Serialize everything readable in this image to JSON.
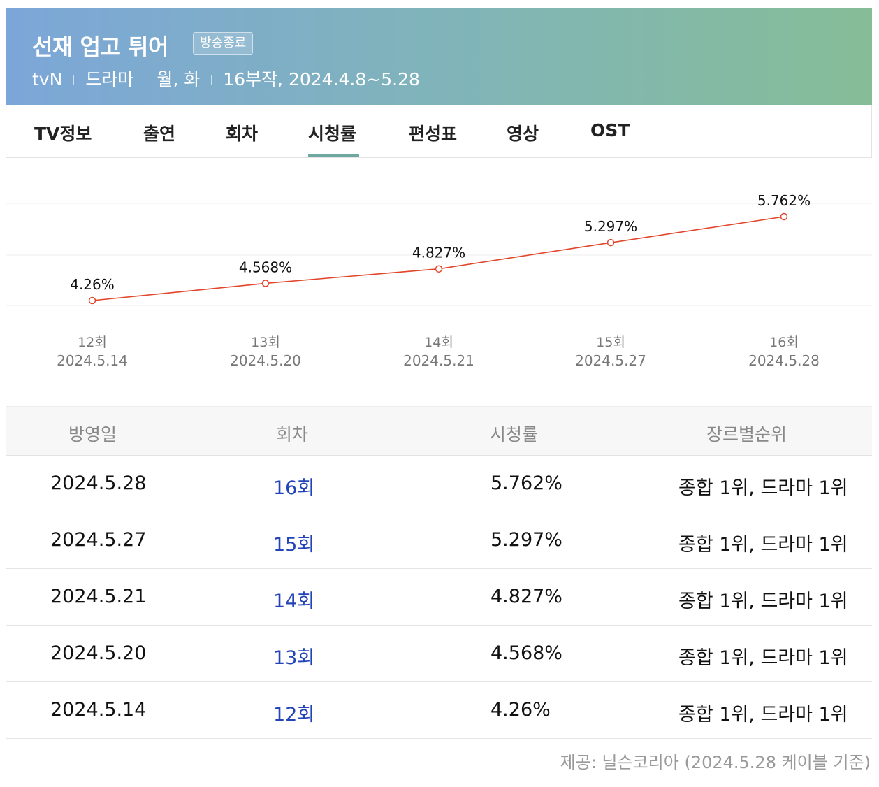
{
  "header": {
    "title": "선재 업고 튀어",
    "badge": "방송종료",
    "channel": "tvN",
    "genre": "드라마",
    "days": "월, 화",
    "episodes_period": "16부작, 2024.4.8~5.28"
  },
  "tabs": [
    {
      "label": "TV정보",
      "active": false
    },
    {
      "label": "출연",
      "active": false
    },
    {
      "label": "회차",
      "active": false
    },
    {
      "label": "시청률",
      "active": true
    },
    {
      "label": "편성표",
      "active": false
    },
    {
      "label": "영상",
      "active": false
    },
    {
      "label": "OST",
      "active": false
    }
  ],
  "chart_data": {
    "type": "line",
    "categories": [
      "12회",
      "13회",
      "14회",
      "15회",
      "16회"
    ],
    "dates": [
      "2024.5.14",
      "2024.5.20",
      "2024.5.21",
      "2024.5.27",
      "2024.5.28"
    ],
    "values": [
      4.26,
      4.568,
      4.827,
      5.297,
      5.762
    ],
    "data_labels": [
      "4.26%",
      "4.568%",
      "4.827%",
      "5.297%",
      "5.762%"
    ],
    "line_color": "#e1452b",
    "grid": true
  },
  "table": {
    "headers": [
      "방영일",
      "회차",
      "시청률",
      "장르별순위"
    ],
    "rows": [
      {
        "date": "2024.5.28",
        "episode": "16회",
        "rating": "5.762%",
        "rank": "종합 1위, 드라마 1위"
      },
      {
        "date": "2024.5.27",
        "episode": "15회",
        "rating": "5.297%",
        "rank": "종합 1위, 드라마 1위"
      },
      {
        "date": "2024.5.21",
        "episode": "14회",
        "rating": "4.827%",
        "rank": "종합 1위, 드라마 1위"
      },
      {
        "date": "2024.5.20",
        "episode": "13회",
        "rating": "4.568%",
        "rank": "종합 1위, 드라마 1위"
      },
      {
        "date": "2024.5.14",
        "episode": "12회",
        "rating": "4.26%",
        "rank": "종합 1위, 드라마 1위"
      }
    ]
  },
  "source": "제공: 닐슨코리아 (2024.5.28 케이블 기준)",
  "colors": {
    "link": "#2344b8",
    "accent_underline": "#6fa8a0"
  }
}
